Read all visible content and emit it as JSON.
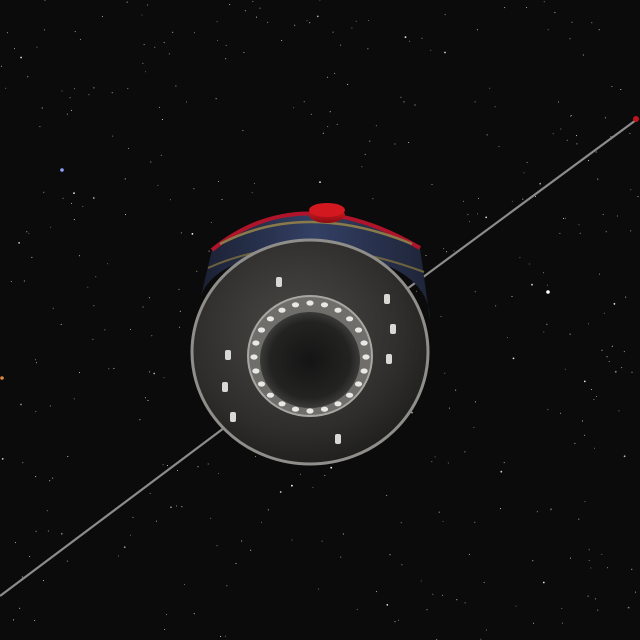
{
  "scene": {
    "subject": "satellite",
    "background": "starfield",
    "colors": {
      "space": "#0b0b0b",
      "hull": "#3a3936",
      "hull_dark": "#1f1f1d",
      "solar_panel": "#2b3550",
      "gold_band": "#8a7a4a",
      "red_cap": "#c0141c",
      "boom": "#8c8c8c",
      "rim": "#9a9a96"
    },
    "icons": [
      "satellite-body",
      "antenna-boom",
      "star"
    ]
  }
}
